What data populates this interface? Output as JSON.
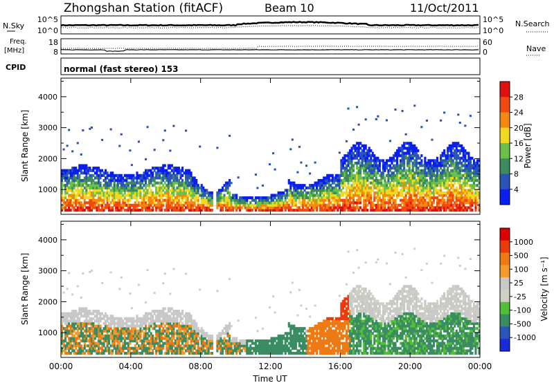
{
  "header": {
    "station": "Zhongshan Station (fitACF)",
    "beam": "Beam 10",
    "date": "11/Oct/2011"
  },
  "top_panels": {
    "nsky_label": "N.Sky",
    "nsky_ticks": [
      "10^5",
      "10^0"
    ],
    "nsearch_label": "N.Search",
    "nsearch_ticks": [
      "10^5",
      "10^0"
    ],
    "freq_label_1": "Freq.",
    "freq_label_2": "[MHz]",
    "freq_ticks": [
      "18",
      "8"
    ],
    "nave_label": "Nave",
    "nave_ticks": [
      "60",
      "0"
    ],
    "cpid_label": "CPID",
    "cpid_text": "normal (fast stereo) 153"
  },
  "colors": {
    "power": [
      "#0a1ef0",
      "#2a55b8",
      "#3d8a5c",
      "#6bc04a",
      "#f2d820",
      "#f28a10",
      "#f04a10",
      "#e01010"
    ],
    "velocity": [
      "#1a2ad8",
      "#2a56b8",
      "#3a8c62",
      "#52c037",
      "#cfcfc2",
      "#c8c8c8",
      "#f29a2a",
      "#ef7a14",
      "#ec3a0a",
      "#dd0000"
    ]
  },
  "chart_data": [
    {
      "type": "heatmap",
      "title": "Power",
      "xlabel": "Time UT",
      "ylabel": "Slant Range [km]",
      "x_ticks": [
        "00:00",
        "04:00",
        "08:00",
        "12:00",
        "16:00",
        "20:00",
        "00:00"
      ],
      "y_ticks": [
        "1000",
        "2000",
        "3000",
        "4000"
      ],
      "ylim": [
        200,
        4600
      ],
      "colorbar_label": "Power [dB]",
      "colorbar_ticks": [
        "4",
        "8",
        "12",
        "16",
        "20",
        "24",
        "28"
      ]
    },
    {
      "type": "heatmap",
      "title": "Velocity",
      "xlabel": "Time UT",
      "ylabel": "Slant Range [km]",
      "x_ticks": [
        "00:00",
        "04:00",
        "08:00",
        "12:00",
        "16:00",
        "20:00",
        "00:00"
      ],
      "y_ticks": [
        "1000",
        "2000",
        "3000",
        "4000"
      ],
      "ylim": [
        200,
        4600
      ],
      "colorbar_label": "Velocity [m s⁻¹]",
      "colorbar_ticks": [
        "1000",
        "500",
        "100",
        "25",
        "-25",
        "-100",
        "-500",
        "-1000"
      ]
    }
  ]
}
